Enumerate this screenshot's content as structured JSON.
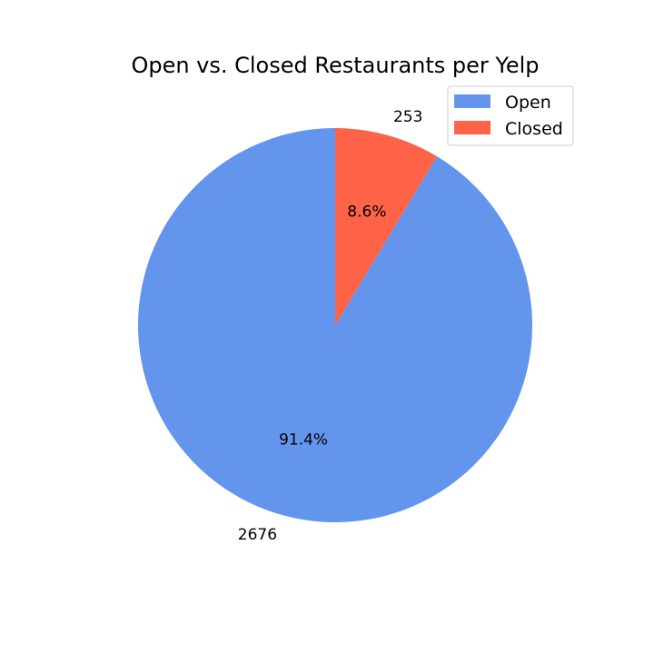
{
  "chart_data": {
    "type": "pie",
    "title": "Open vs. Closed Restaurants per Yelp",
    "categories": [
      "Open",
      "Closed"
    ],
    "values": [
      2676,
      253
    ],
    "value_labels": [
      "2676",
      "253"
    ],
    "percent_labels": [
      "91.4%",
      "8.6%"
    ],
    "colors": [
      "#6495ed",
      "#ff6347"
    ],
    "start_angle_deg": 90,
    "direction": "counterclockwise",
    "legend": {
      "placement": "top-right",
      "entries": [
        "Open",
        "Closed"
      ]
    }
  }
}
